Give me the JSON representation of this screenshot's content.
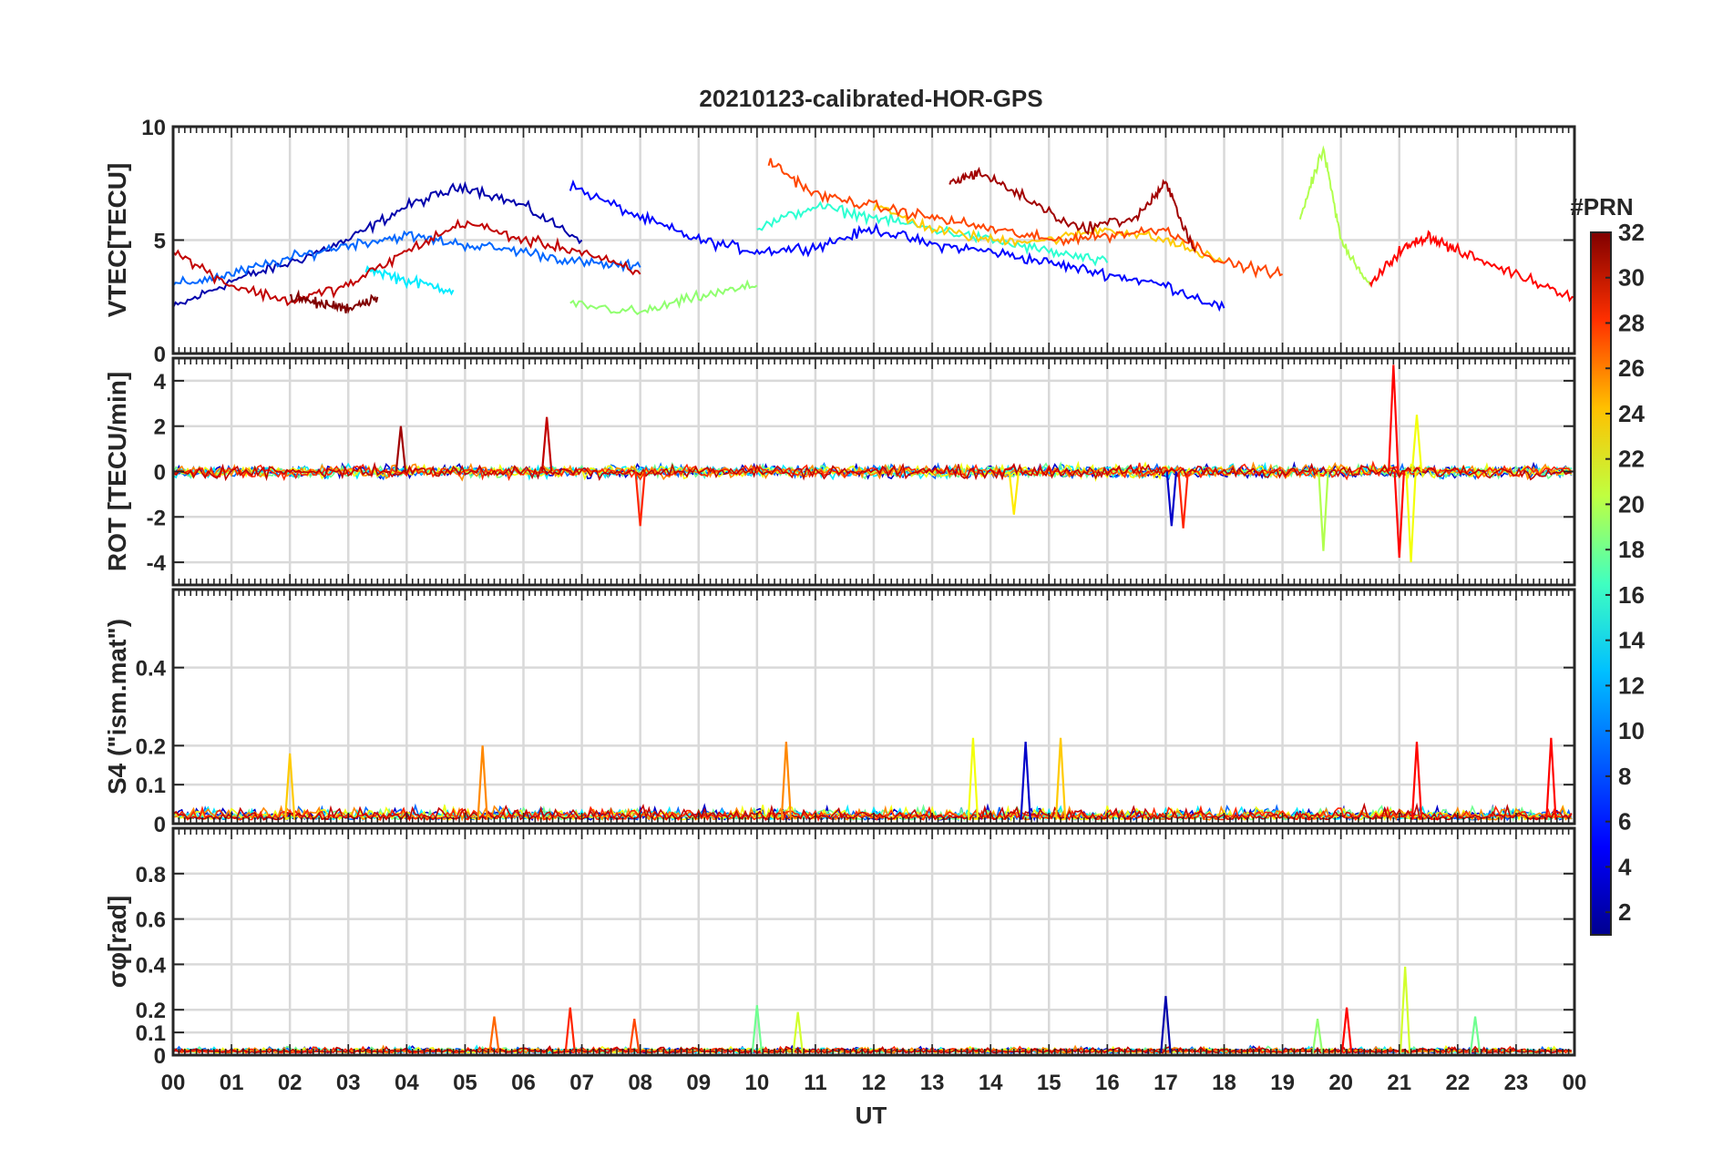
{
  "figure": {
    "title": "20210123-calibrated-HOR-GPS",
    "xlabel": "UT",
    "x_ticks": [
      "00",
      "01",
      "02",
      "03",
      "04",
      "05",
      "06",
      "07",
      "08",
      "09",
      "10",
      "11",
      "12",
      "13",
      "14",
      "15",
      "16",
      "17",
      "18",
      "19",
      "20",
      "21",
      "22",
      "23",
      "00"
    ]
  },
  "colorbar": {
    "label": "#PRN",
    "range": [
      1,
      32
    ],
    "ticks": [
      "32",
      "30",
      "28",
      "26",
      "24",
      "22",
      "20",
      "18",
      "16",
      "14",
      "12",
      "10",
      "8",
      "6",
      "4",
      "2"
    ],
    "tick_values": [
      32,
      30,
      28,
      26,
      24,
      22,
      20,
      18,
      16,
      14,
      12,
      10,
      8,
      6,
      4,
      2
    ],
    "colormap": [
      "#00008f",
      "#0000ff",
      "#0080ff",
      "#00ffff",
      "#80ff80",
      "#ffff00",
      "#ff8000",
      "#ff0000",
      "#800000"
    ]
  },
  "chart_data": [
    {
      "type": "line",
      "panel": "vtec",
      "ylabel": "VTEC[TECU]",
      "xlim": [
        0,
        24
      ],
      "ylim": [
        0,
        10
      ],
      "y_ticks": [
        0,
        5,
        10
      ],
      "y_tick_labels": [
        "0",
        "5",
        "10"
      ],
      "series_note": "one line per GPS PRN, colored by PRN number",
      "series": [
        {
          "prn": 2,
          "x": [
            0,
            1,
            2,
            3,
            4,
            5,
            6,
            7
          ],
          "y": [
            2.0,
            3.2,
            4.0,
            5.0,
            6.5,
            7.4,
            6.5,
            5.0
          ]
        },
        {
          "prn": 5,
          "x": [
            6.8,
            8,
            9,
            10,
            11,
            12,
            13,
            14,
            15,
            16,
            17,
            18
          ],
          "y": [
            7.4,
            6.0,
            5.0,
            4.5,
            4.7,
            5.5,
            4.8,
            4.5,
            4.0,
            3.5,
            3.0,
            2.0
          ]
        },
        {
          "prn": 8,
          "x": [
            0,
            1,
            2,
            3,
            4,
            5,
            6,
            7,
            8
          ],
          "y": [
            3.0,
            3.5,
            4.2,
            4.8,
            5.2,
            4.8,
            4.5,
            4.0,
            3.8
          ]
        },
        {
          "prn": 12,
          "x": [
            3.3,
            4,
            4.8
          ],
          "y": [
            3.8,
            3.2,
            2.8
          ]
        },
        {
          "prn": 14,
          "x": [
            10,
            11,
            12,
            13,
            14,
            15,
            16
          ],
          "y": [
            5.5,
            6.5,
            6.0,
            5.5,
            5.0,
            4.5,
            4.0
          ]
        },
        {
          "prn": 17,
          "x": [
            6.8,
            8,
            9,
            10
          ],
          "y": [
            2.2,
            1.8,
            2.5,
            3.0
          ]
        },
        {
          "prn": 18,
          "x": [
            19.3,
            19.7,
            20,
            20.5
          ],
          "y": [
            6.0,
            9.0,
            5.0,
            3.0
          ]
        },
        {
          "prn": 22,
          "x": [
            12,
            13,
            14,
            15,
            16,
            17,
            18
          ],
          "y": [
            6.5,
            5.5,
            5.0,
            5.0,
            5.5,
            5.0,
            4.0
          ]
        },
        {
          "prn": 26,
          "x": [
            10.2,
            11,
            12,
            13,
            14,
            15,
            16,
            17,
            18,
            19
          ],
          "y": [
            8.5,
            7.0,
            6.5,
            6.0,
            5.5,
            5.0,
            5.2,
            5.5,
            4.0,
            3.5
          ]
        },
        {
          "prn": 28,
          "x": [
            20.5,
            21,
            21.5,
            22,
            23,
            24
          ],
          "y": [
            3.0,
            4.5,
            5.2,
            4.5,
            3.5,
            2.5
          ]
        },
        {
          "prn": 30,
          "x": [
            0,
            1,
            2,
            3,
            4,
            5,
            6,
            7,
            8
          ],
          "y": [
            4.5,
            3.0,
            2.3,
            3.0,
            4.5,
            5.8,
            5.0,
            4.5,
            3.5
          ]
        },
        {
          "prn": 31,
          "x": [
            13.3,
            13.8,
            14.5,
            15.5,
            16.5,
            17,
            17.5
          ],
          "y": [
            7.5,
            8.0,
            7.0,
            5.5,
            6.0,
            7.5,
            4.5
          ]
        },
        {
          "prn": 32,
          "x": [
            2,
            2.5,
            3,
            3.5
          ],
          "y": [
            2.5,
            2.2,
            2.0,
            2.5
          ]
        }
      ]
    },
    {
      "type": "line",
      "panel": "rot",
      "ylabel": "ROT [TECU/min]",
      "xlim": [
        0,
        24
      ],
      "ylim": [
        -5,
        5
      ],
      "y_ticks": [
        4,
        2,
        0,
        -2,
        -4
      ],
      "y_tick_labels": [
        "4",
        "2",
        "0",
        "-2",
        "-4"
      ],
      "typical_amplitude": 0.4,
      "notable_spikes": [
        {
          "x": 3.9,
          "y": 2.0,
          "prn": 31
        },
        {
          "x": 6.4,
          "y": 2.4,
          "prn": 30
        },
        {
          "x": 8.0,
          "y": -2.4,
          "prn": 27
        },
        {
          "x": 14.4,
          "y": -1.9,
          "prn": 21
        },
        {
          "x": 17.1,
          "y": -2.4,
          "prn": 3
        },
        {
          "x": 17.3,
          "y": -2.5,
          "prn": 27
        },
        {
          "x": 19.7,
          "y": -3.5,
          "prn": 18
        },
        {
          "x": 20.9,
          "y": 4.7,
          "prn": 28
        },
        {
          "x": 21.0,
          "y": -3.8,
          "prn": 28
        },
        {
          "x": 21.2,
          "y": -4.0,
          "prn": 20
        },
        {
          "x": 21.3,
          "y": 2.5,
          "prn": 20
        }
      ]
    },
    {
      "type": "line",
      "panel": "s4",
      "ylabel": "S4 (\"ism.mat\")",
      "xlim": [
        0,
        24
      ],
      "ylim": [
        0,
        0.6
      ],
      "y_ticks": [
        0,
        0.1,
        0.2,
        0.4
      ],
      "y_tick_labels": [
        "0",
        "0.1",
        "0.2",
        "0.4"
      ],
      "typical_level": 0.05,
      "notable_peaks": [
        {
          "x": 2.0,
          "y": 0.18,
          "prn": 22
        },
        {
          "x": 5.3,
          "y": 0.2,
          "prn": 24
        },
        {
          "x": 10.5,
          "y": 0.21,
          "prn": 24
        },
        {
          "x": 13.7,
          "y": 0.22,
          "prn": 20
        },
        {
          "x": 14.6,
          "y": 0.21,
          "prn": 3
        },
        {
          "x": 15.2,
          "y": 0.22,
          "prn": 22
        },
        {
          "x": 21.3,
          "y": 0.21,
          "prn": 28
        },
        {
          "x": 23.6,
          "y": 0.22,
          "prn": 28
        }
      ]
    },
    {
      "type": "line",
      "panel": "sigma_phi",
      "ylabel": "σφ[rad]",
      "xlim": [
        0,
        24
      ],
      "ylim": [
        0,
        1.0
      ],
      "y_ticks": [
        0,
        0.1,
        0.2,
        0.4,
        0.6,
        0.8
      ],
      "y_tick_labels": [
        "0",
        "0.1",
        "0.2",
        "0.4",
        "0.6",
        "0.8"
      ],
      "typical_level": 0.04,
      "notable_peaks": [
        {
          "x": 5.5,
          "y": 0.17,
          "prn": 25
        },
        {
          "x": 6.8,
          "y": 0.21,
          "prn": 27
        },
        {
          "x": 7.9,
          "y": 0.16,
          "prn": 26
        },
        {
          "x": 10.0,
          "y": 0.22,
          "prn": 16
        },
        {
          "x": 10.7,
          "y": 0.19,
          "prn": 19
        },
        {
          "x": 17.0,
          "y": 0.26,
          "prn": 2
        },
        {
          "x": 19.6,
          "y": 0.16,
          "prn": 17
        },
        {
          "x": 20.1,
          "y": 0.21,
          "prn": 28
        },
        {
          "x": 21.1,
          "y": 0.39,
          "prn": 19
        },
        {
          "x": 22.3,
          "y": 0.17,
          "prn": 16
        }
      ]
    }
  ]
}
